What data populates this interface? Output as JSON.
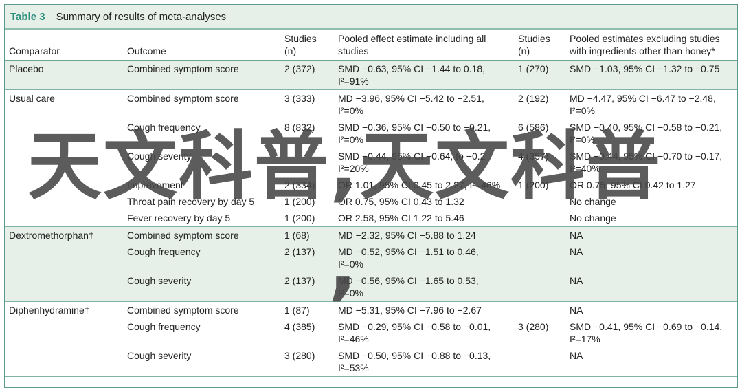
{
  "table": {
    "label": "Table 3",
    "title": "Summary of results of meta-analyses",
    "headers": {
      "comparator": "Comparator",
      "outcome": "Outcome",
      "studies1": "Studies (n)",
      "pooled_all": "Pooled effect estimate including all studies",
      "studies2": "Studies (n)",
      "pooled_excl": "Pooled estimates excluding studies with ingredients other than honey*"
    },
    "rows": [
      {
        "comparator": "Placebo",
        "outcome": "Combined symptom score",
        "studies": "2 (372)",
        "estimate": "SMD −0.63, 95% CI −1.44 to 0.18,",
        "het": "I²=91%",
        "studies_excl": "1 (270)",
        "estimate_excl": "SMD −1.03, 95% CI −1.32 to −0.75",
        "het_excl": ""
      },
      {
        "comparator": "Usual care",
        "outcome": "Combined symptom score",
        "studies": "3 (333)",
        "estimate": "MD −3.96, 95% CI −5.42 to −2.51,",
        "het": "I²=0%",
        "studies_excl": "2 (192)",
        "estimate_excl": "MD −4.47, 95% CI −6.47 to −2.48,",
        "het_excl": "I²=0%"
      },
      {
        "comparator": "",
        "outcome": "Cough frequency",
        "studies": "8 (832)",
        "estimate": "SMD −0.36, 95% CI −0.50 to −0.21,",
        "het": "I²=0%",
        "studies_excl": "6 (586)",
        "estimate_excl": "SMD −0.40, 95% CI −0.58 to −0.21,",
        "het_excl": "I²=0%"
      },
      {
        "comparator": "",
        "outcome": "Cough severity",
        "studies": "",
        "estimate": "SMD −0.44, 95% CI −0.64, to −0.2",
        "het": "I²=20%",
        "studies_excl": "4 (357)",
        "estimate_excl": "SMD −0.44, 95% CI −0.70 to −0.17,",
        "het_excl": "I²=40%"
      },
      {
        "comparator": "",
        "outcome": "Improvement",
        "studies": "2 (334)",
        "estimate": "OR 1.01, 95% CI 0.45 to 2.27, I²=46%",
        "het": "",
        "studies_excl": "1 (200)",
        "estimate_excl": "OR 0.75, 95% CI 0.42 to 1.27",
        "het_excl": ""
      },
      {
        "comparator": "",
        "outcome": "Throat pain recovery by day 5",
        "studies": "1 (200)",
        "estimate": "OR 0.75, 95% CI 0.43 to 1.32",
        "het": "",
        "studies_excl": "",
        "estimate_excl": "No change",
        "het_excl": ""
      },
      {
        "comparator": "",
        "outcome": "Fever recovery by day 5",
        "studies": "1 (200)",
        "estimate": "OR 2.58, 95% CI 1.22 to 5.46",
        "het": "",
        "studies_excl": "",
        "estimate_excl": "No change",
        "het_excl": ""
      },
      {
        "comparator": "Dextromethorphan†",
        "outcome": "Combined symptom score",
        "studies": "1 (68)",
        "estimate": "MD −2.32, 95% CI −5.88 to 1.24",
        "het": "",
        "studies_excl": "",
        "estimate_excl": "NA",
        "het_excl": ""
      },
      {
        "comparator": "",
        "outcome": "Cough frequency",
        "studies": "2 (137)",
        "estimate": "MD −0.52, 95% CI −1.51 to 0.46,",
        "het": "I²=0%",
        "studies_excl": "",
        "estimate_excl": "NA",
        "het_excl": ""
      },
      {
        "comparator": "",
        "outcome": "Cough severity",
        "studies": "2 (137)",
        "estimate": "MD −0.56, 95% CI −1.65 to 0.53,",
        "het": "I²=0%",
        "studies_excl": "",
        "estimate_excl": "NA",
        "het_excl": ""
      },
      {
        "comparator": "Diphenhydramine†",
        "outcome": "Combined symptom score",
        "studies": "1 (87)",
        "estimate": "MD −5.31, 95% CI −7.96 to −2.67",
        "het": "",
        "studies_excl": "",
        "estimate_excl": "NA",
        "het_excl": ""
      },
      {
        "comparator": "",
        "outcome": "Cough frequency",
        "studies": "4 (385)",
        "estimate": "SMD −0.29, 95% CI −0.58 to −0.01,",
        "het": "I²=46%",
        "studies_excl": "3 (280)",
        "estimate_excl": "SMD −0.41, 95% CI −0.69 to −0.14,",
        "het_excl": "I²=17%"
      },
      {
        "comparator": "",
        "outcome": "Cough severity",
        "studies": "3 (280)",
        "estimate": "SMD −0.50, 95% CI −0.88 to −0.13,",
        "het": "I²=53%",
        "studies_excl": "",
        "estimate_excl": "NA",
        "het_excl": ""
      }
    ]
  },
  "watermark": {
    "text": "天文科普,天文科普",
    "comma": ","
  },
  "colors": {
    "accent": "#2e8f7c",
    "shade": "#e6f0e9",
    "rule": "#6aa596"
  }
}
